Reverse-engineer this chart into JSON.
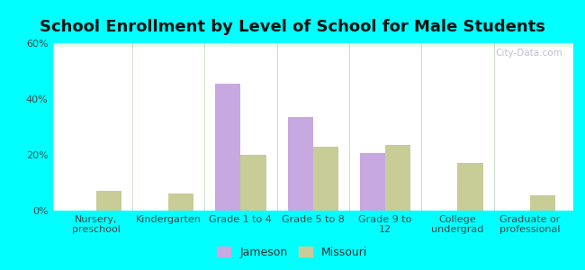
{
  "title": "School Enrollment by Level of School for Male Students",
  "categories": [
    "Nursery,\npreschool",
    "Kindergarten",
    "Grade 1 to 4",
    "Grade 5 to 8",
    "Grade 9 to\n12",
    "College\nundergrad",
    "Graduate or\nprofessional"
  ],
  "jameson_values": [
    0,
    0,
    45.5,
    33.5,
    20.5,
    0,
    0
  ],
  "missouri_values": [
    7.0,
    6.0,
    20.0,
    23.0,
    23.5,
    17.0,
    5.5
  ],
  "jameson_color": "#c8a8e0",
  "missouri_color": "#c8cc96",
  "background_color": "#00FFFF",
  "ylim": [
    0,
    60
  ],
  "yticks": [
    0,
    20,
    40,
    60
  ],
  "ytick_labels": [
    "0%",
    "20%",
    "40%",
    "60%"
  ],
  "legend_labels": [
    "Jameson",
    "Missouri"
  ],
  "title_fontsize": 13,
  "tick_fontsize": 8,
  "bar_width": 0.35,
  "watermark_text": "City-Data.com"
}
